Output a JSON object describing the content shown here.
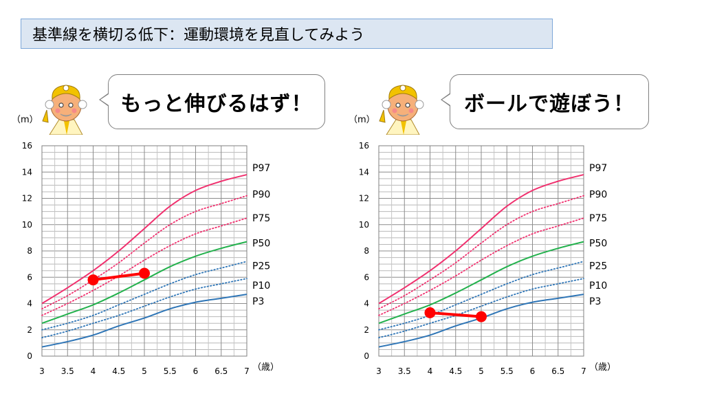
{
  "header": {
    "title": "基準線を横切る低下：運動環境を見直してみよう"
  },
  "colors": {
    "p97": "#f0306e",
    "p90": "#f0306e",
    "p75": "#f0306e",
    "p50": "#22b14c",
    "p25": "#2e75b6",
    "p10": "#2e75b6",
    "p3": "#2e75b6",
    "child": "#ff0000",
    "title_bg": "#dce6f2",
    "title_border": "#7da7d9"
  },
  "chart_data": [
    {
      "type": "line",
      "bubble_text": "もっと伸びるはず！",
      "y_unit": "（m）",
      "x_unit": "（歳）",
      "xlim": [
        3,
        7
      ],
      "ylim": [
        0,
        16
      ],
      "x_ticks": [
        "3",
        "3.5",
        "4",
        "4.5",
        "5",
        "5.5",
        "6",
        "6.5",
        "7"
      ],
      "y_ticks": [
        "0",
        "2",
        "4",
        "6",
        "8",
        "10",
        "12",
        "14",
        "16"
      ],
      "grid": true,
      "x": [
        3,
        3.5,
        4,
        4.5,
        5,
        5.5,
        6,
        6.5,
        7
      ],
      "series": [
        {
          "name": "P97",
          "style": "solid",
          "values": [
            4.0,
            5.2,
            6.5,
            8.0,
            9.7,
            11.4,
            12.6,
            13.3,
            13.8
          ]
        },
        {
          "name": "P90",
          "style": "dotted",
          "values": [
            3.6,
            4.6,
            5.8,
            7.1,
            8.6,
            10.0,
            11.0,
            11.6,
            12.2
          ]
        },
        {
          "name": "P75",
          "style": "dotted",
          "values": [
            3.1,
            4.0,
            5.0,
            6.1,
            7.3,
            8.4,
            9.3,
            9.9,
            10.5
          ]
        },
        {
          "name": "P50",
          "style": "solid",
          "values": [
            2.5,
            3.2,
            3.9,
            4.8,
            5.8,
            6.8,
            7.6,
            8.2,
            8.7
          ]
        },
        {
          "name": "P25",
          "style": "dotted",
          "values": [
            2.0,
            2.5,
            3.1,
            3.9,
            4.7,
            5.5,
            6.2,
            6.7,
            7.2
          ]
        },
        {
          "name": "P10",
          "style": "dotted",
          "values": [
            1.4,
            1.9,
            2.5,
            3.1,
            3.8,
            4.5,
            5.1,
            5.5,
            5.9
          ]
        },
        {
          "name": "P3",
          "style": "solid",
          "values": [
            0.7,
            1.1,
            1.6,
            2.3,
            2.9,
            3.6,
            4.1,
            4.4,
            4.7
          ]
        }
      ],
      "child_points": [
        {
          "x": 4,
          "y": 5.8
        },
        {
          "x": 5,
          "y": 6.3
        }
      ]
    },
    {
      "type": "line",
      "bubble_text": "ボールで遊ぼう！",
      "y_unit": "（m）",
      "x_unit": "（歳）",
      "xlim": [
        3,
        7
      ],
      "ylim": [
        0,
        16
      ],
      "x_ticks": [
        "3",
        "3.5",
        "4",
        "4.5",
        "5",
        "5.5",
        "6",
        "6.5",
        "7"
      ],
      "y_ticks": [
        "0",
        "2",
        "4",
        "6",
        "8",
        "10",
        "12",
        "14",
        "16"
      ],
      "grid": true,
      "x": [
        3,
        3.5,
        4,
        4.5,
        5,
        5.5,
        6,
        6.5,
        7
      ],
      "series": [
        {
          "name": "P97",
          "style": "solid",
          "values": [
            4.0,
            5.2,
            6.5,
            8.0,
            9.7,
            11.4,
            12.6,
            13.3,
            13.8
          ]
        },
        {
          "name": "P90",
          "style": "dotted",
          "values": [
            3.6,
            4.6,
            5.8,
            7.1,
            8.6,
            10.0,
            11.0,
            11.6,
            12.2
          ]
        },
        {
          "name": "P75",
          "style": "dotted",
          "values": [
            3.1,
            4.0,
            5.0,
            6.1,
            7.3,
            8.4,
            9.3,
            9.9,
            10.5
          ]
        },
        {
          "name": "P50",
          "style": "solid",
          "values": [
            2.5,
            3.2,
            3.9,
            4.8,
            5.8,
            6.8,
            7.6,
            8.2,
            8.7
          ]
        },
        {
          "name": "P25",
          "style": "dotted",
          "values": [
            2.0,
            2.5,
            3.1,
            3.9,
            4.7,
            5.5,
            6.2,
            6.7,
            7.2
          ]
        },
        {
          "name": "P10",
          "style": "dotted",
          "values": [
            1.4,
            1.9,
            2.5,
            3.1,
            3.8,
            4.5,
            5.1,
            5.5,
            5.9
          ]
        },
        {
          "name": "P3",
          "style": "solid",
          "values": [
            0.7,
            1.1,
            1.6,
            2.3,
            2.9,
            3.6,
            4.1,
            4.4,
            4.7
          ]
        }
      ],
      "child_points": [
        {
          "x": 4,
          "y": 3.3
        },
        {
          "x": 5,
          "y": 3.0
        }
      ]
    }
  ]
}
